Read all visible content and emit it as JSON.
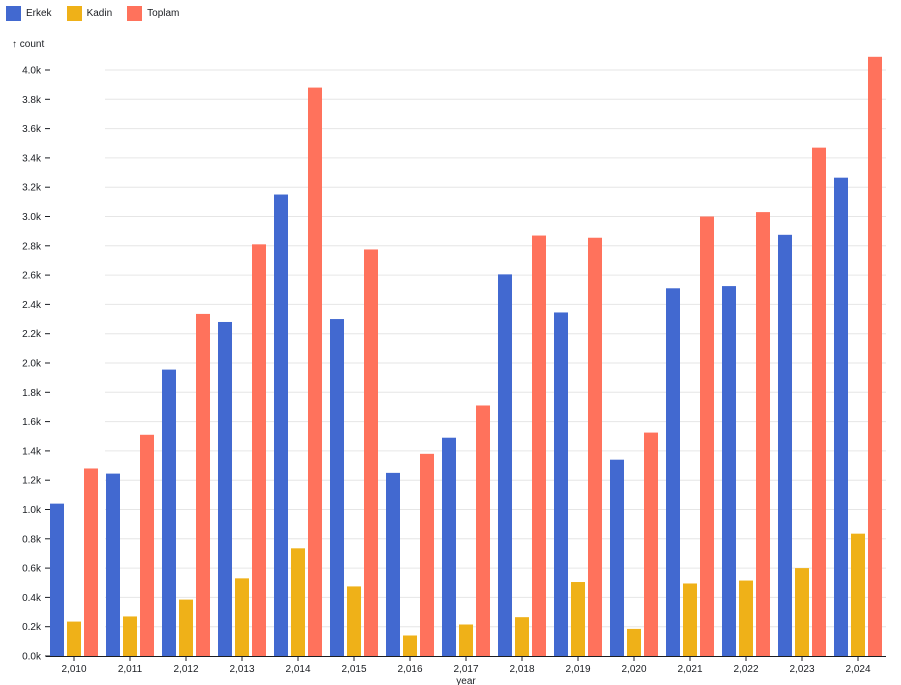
{
  "chart_data": {
    "type": "bar",
    "title": "",
    "xlabel": "year",
    "ylabel": "↑ count",
    "ylim": [
      0,
      4000
    ],
    "y_ticks": [
      0,
      200,
      400,
      600,
      800,
      1000,
      1200,
      1400,
      1600,
      1800,
      2000,
      2200,
      2400,
      2600,
      2800,
      3000,
      3200,
      3400,
      3600,
      3800,
      4000
    ],
    "y_tick_labels": [
      "0.0k",
      "0.2k",
      "0.4k",
      "0.6k",
      "0.8k",
      "1.0k",
      "1.2k",
      "1.4k",
      "1.6k",
      "1.8k",
      "2.0k",
      "2.2k",
      "2.4k",
      "2.6k",
      "2.8k",
      "3.0k",
      "3.2k",
      "3.4k",
      "3.6k",
      "3.8k",
      "4.0k"
    ],
    "categories": [
      "2,010",
      "2,011",
      "2,012",
      "2,013",
      "2,014",
      "2,015",
      "2,016",
      "2,017",
      "2,018",
      "2,019",
      "2,020",
      "2,021",
      "2,022",
      "2,023",
      "2,024"
    ],
    "grid": true,
    "legend_position": "top-left",
    "series": [
      {
        "name": "Erkek",
        "color": "#4269d0",
        "values": [
          1040,
          1245,
          1955,
          2280,
          3150,
          2300,
          1250,
          1490,
          2605,
          2345,
          1340,
          2510,
          2525,
          2875,
          3265
        ]
      },
      {
        "name": "Kadin",
        "color": "#efb118",
        "values": [
          235,
          270,
          385,
          530,
          735,
          475,
          140,
          215,
          265,
          505,
          185,
          495,
          515,
          600,
          835
        ]
      },
      {
        "name": "Toplam",
        "color": "#ff725c",
        "values": [
          1280,
          1510,
          2335,
          2810,
          3880,
          2775,
          1380,
          1710,
          2870,
          2855,
          1525,
          3000,
          3030,
          3470,
          4090
        ]
      }
    ]
  }
}
